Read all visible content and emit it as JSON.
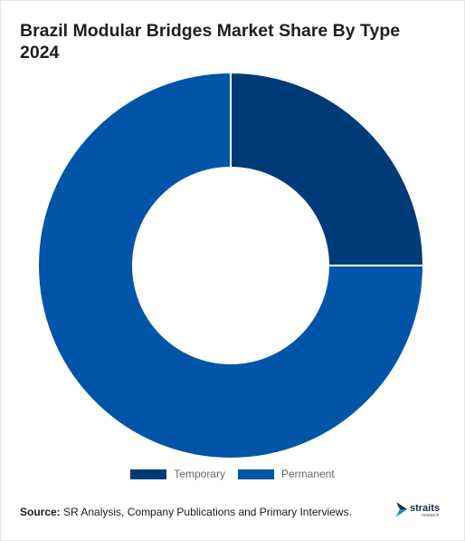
{
  "title_line1": "Brazil Modular Bridges Market Share By Type",
  "title_line2": "2024",
  "chart_data": {
    "type": "pie",
    "variant": "donut",
    "title": "Brazil Modular Bridges Market Share By Type 2024",
    "categories": [
      "Temporary",
      "Permanent"
    ],
    "values": [
      25,
      75
    ],
    "unit": "%",
    "colors": [
      "#003b79",
      "#0055a8"
    ],
    "start_angle": "12 o'clock",
    "direction": "clockwise",
    "legend_position": "bottom"
  },
  "legend": [
    {
      "label": "Temporary",
      "color": "#003b79"
    },
    {
      "label": "Permanent",
      "color": "#0055a8"
    }
  ],
  "source": {
    "prefix": "Source:",
    "text": "SR Analysis, Company Publications and Primary Interviews."
  },
  "logo": {
    "name": "straits",
    "subtext": "research",
    "icon": "straits-arrow-icon"
  }
}
